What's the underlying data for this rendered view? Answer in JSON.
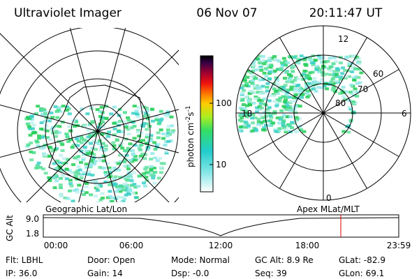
{
  "header": {
    "title": "Ultraviolet Imager",
    "date": "06 Nov 07",
    "time": "20:11:47 UT"
  },
  "colorbar": {
    "label": "photon cm",
    "exp1": "-2",
    "unit2": "s",
    "exp2": "-1",
    "ticks": [
      "100",
      "10"
    ]
  },
  "polar": {
    "mlt": [
      "12",
      "18",
      "6",
      "0"
    ],
    "mlat": [
      "60",
      "70",
      "80"
    ]
  },
  "altitude": {
    "left_label": "Geographic Lat/Lon",
    "right_label": "Apex MLat/MLT",
    "axis_title": "GC Alt",
    "yticks": [
      "9.0",
      "1.8"
    ],
    "xticks": [
      "00:00",
      "06:00",
      "12:00",
      "18:00",
      "23:59"
    ]
  },
  "footer": {
    "rows": [
      [
        "Flt: LBHL",
        "Door: Open",
        "Mode: Normal",
        "GC Alt: 8.9 Re",
        "GLat: -82.9"
      ],
      [
        "IP: 36.0",
        "Gain: 14",
        "Dsp: -0.0",
        "Seq: 39",
        "GLon: 69.1"
      ]
    ]
  }
}
